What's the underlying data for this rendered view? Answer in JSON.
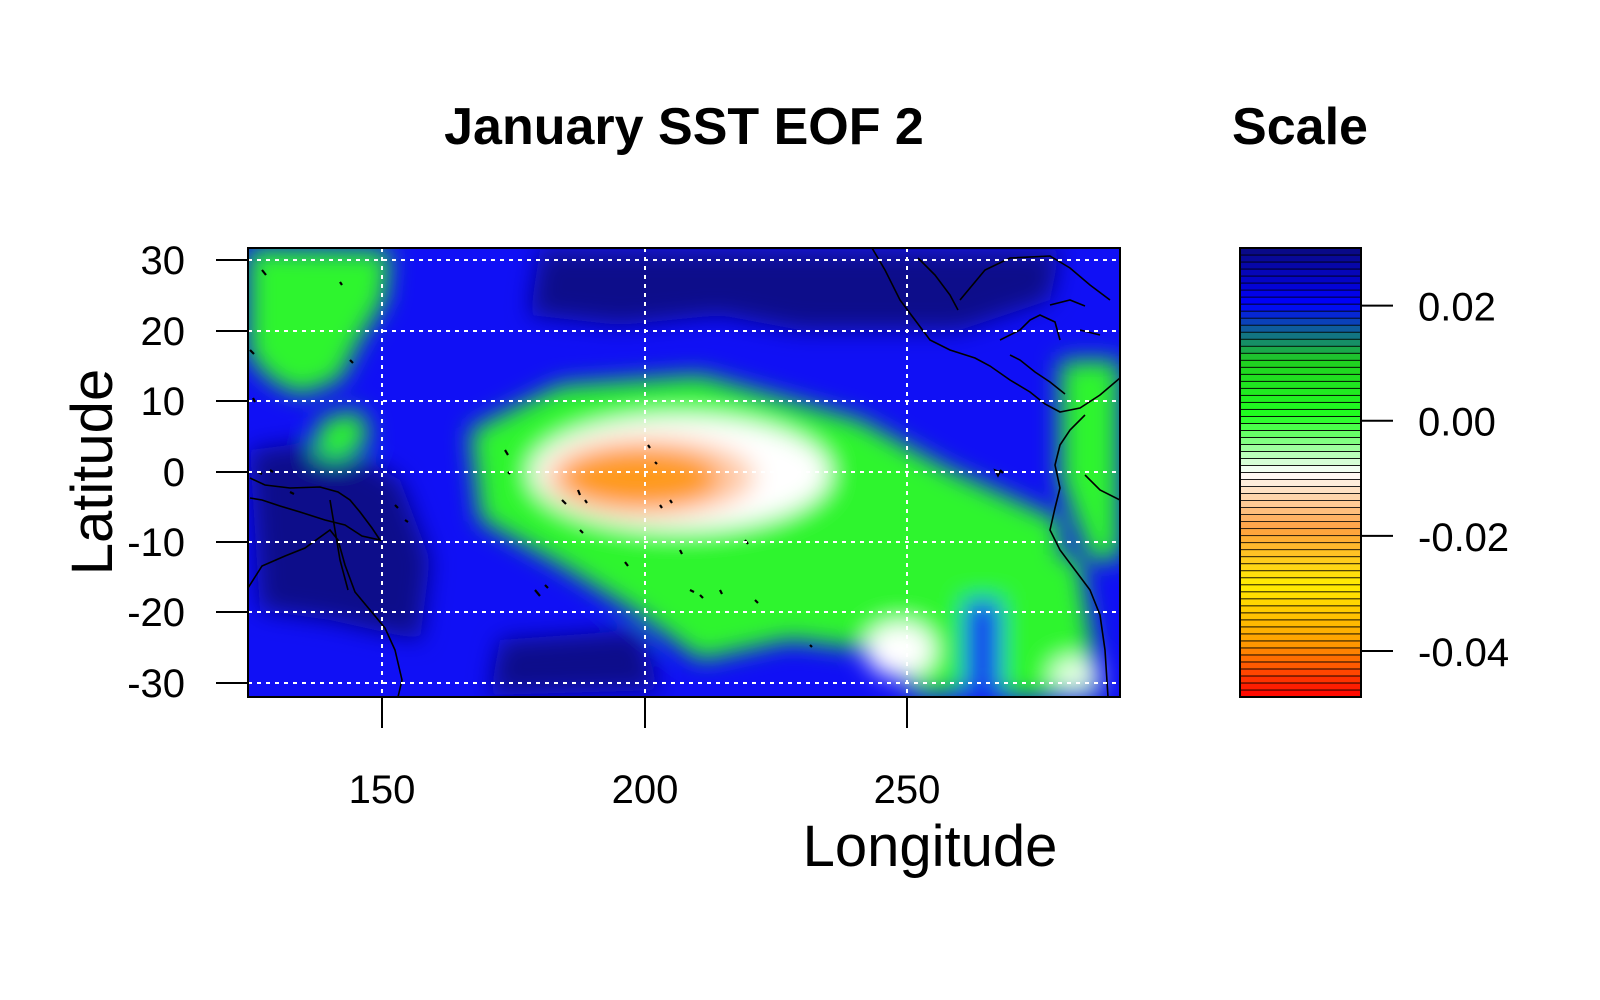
{
  "chart_data": [
    {
      "type": "heatmap",
      "title": "January SST EOF 2",
      "xlabel": "Longitude",
      "ylabel": "Latitude",
      "xlim": [
        124,
        290
      ],
      "ylim": [
        -32,
        32
      ],
      "x_ticks": [
        150,
        200,
        250
      ],
      "x_tick_labels": [
        "150",
        "200",
        "250"
      ],
      "y_ticks": [
        30,
        20,
        10,
        0,
        -10,
        -20,
        -30
      ],
      "y_tick_labels": [
        "30",
        "20",
        "10",
        "0",
        "-10",
        "-20",
        "-30"
      ],
      "grid": true,
      "coastlines": true,
      "features": [
        {
          "name": "equatorial minimum",
          "lon": 200,
          "lat": -2,
          "value": -0.03
        },
        {
          "name": "equatorial tongue",
          "lon": 225,
          "lat": -5,
          "value": -0.012
        },
        {
          "name": "north-west positive lobe",
          "lon": 205,
          "lat": 25,
          "value": 0.03
        },
        {
          "name": "south-west positive lobe",
          "lon": 150,
          "lat": -15,
          "value": 0.03
        },
        {
          "name": "south-east near-zero lobe",
          "lon": 255,
          "lat": -22,
          "value": -0.005
        },
        {
          "name": "north-west corner",
          "lon": 135,
          "lat": 25,
          "value": 0.003
        }
      ]
    },
    {
      "type": "colorbar",
      "title": "Scale",
      "range": [
        -0.048,
        0.03
      ],
      "ticks": [
        0.02,
        0.0,
        -0.02,
        -0.04
      ],
      "tick_labels": [
        "0.02",
        "0.00",
        "-0.02",
        "-0.04"
      ],
      "colors": [
        "#ff0000",
        "#ffa000",
        "#ffee00",
        "#ffa040",
        "#ffffff",
        "#20ff20",
        "#20d020",
        "#0000ff",
        "#0a0a80"
      ]
    }
  ]
}
